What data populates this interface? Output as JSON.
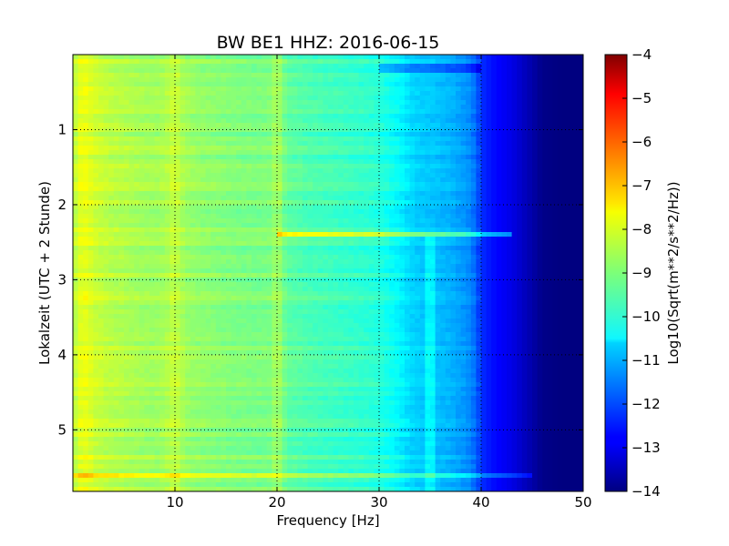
{
  "chart_data": {
    "type": "heatmap",
    "title": "BW BE1 HHZ: 2016-06-15",
    "xlabel": "Frequency [Hz]",
    "ylabel": "Lokalzeit (UTC + 2 Stunde)",
    "colorbar_label": "Log10(Sqrt(m**2/s**2/Hz))",
    "xlim": [
      0,
      50
    ],
    "ylim": [
      5.82,
      0
    ],
    "xticks": [
      10,
      20,
      30,
      40,
      50
    ],
    "yticks": [
      1,
      2,
      3,
      4,
      5
    ],
    "clim": [
      -14,
      -4
    ],
    "colorbar_ticks": [
      -4,
      -5,
      -6,
      -7,
      -8,
      -9,
      -10,
      -11,
      -12,
      -13,
      -14
    ],
    "colormap": "jet",
    "grid": true,
    "grid_style": "dotted",
    "frequency_profile": {
      "frequency_hz": [
        0,
        0.5,
        1,
        1.5,
        2,
        3,
        4,
        5,
        6,
        8,
        9,
        10,
        11,
        12,
        14,
        16,
        18,
        19.5,
        20,
        20.5,
        21,
        23,
        25,
        27,
        29,
        30,
        31,
        32,
        33,
        34,
        35,
        36,
        37,
        38,
        39,
        39.5,
        40,
        41,
        42,
        43,
        44,
        45,
        46,
        48,
        50
      ],
      "log10_amplitude": [
        -8.6,
        -8.1,
        -7.95,
        -8.0,
        -8.2,
        -8.35,
        -8.45,
        -8.5,
        -8.6,
        -8.7,
        -8.6,
        -8.3,
        -8.7,
        -8.8,
        -8.9,
        -9.0,
        -9.05,
        -9.0,
        -8.5,
        -9.0,
        -9.3,
        -9.5,
        -9.6,
        -9.7,
        -9.8,
        -9.9,
        -10.1,
        -10.3,
        -10.6,
        -10.75,
        -10.8,
        -10.9,
        -11.0,
        -11.2,
        -11.4,
        -11.8,
        -12.3,
        -12.6,
        -12.8,
        -13.0,
        -13.3,
        -13.6,
        -13.9,
        -14.0,
        -14.0
      ]
    },
    "features": [
      {
        "type": "band",
        "time_h": 5.62,
        "fmax_hz": 45,
        "log10_amplitude_offset": 0.9
      },
      {
        "type": "band",
        "time_h": 2.4,
        "fmin_hz": 20,
        "fmax_hz": 43,
        "log10_amplitude_offset": 1.6
      },
      {
        "type": "band",
        "time_h": 0.18,
        "fmin_hz": 30,
        "fmax_hz": 40,
        "log10_amplitude_offset": -0.8
      },
      {
        "type": "line",
        "frequency_hz": 35,
        "time_start_h": 2.4,
        "time_end_h": 5.82,
        "log10_amplitude_offset": 0.5
      }
    ]
  }
}
